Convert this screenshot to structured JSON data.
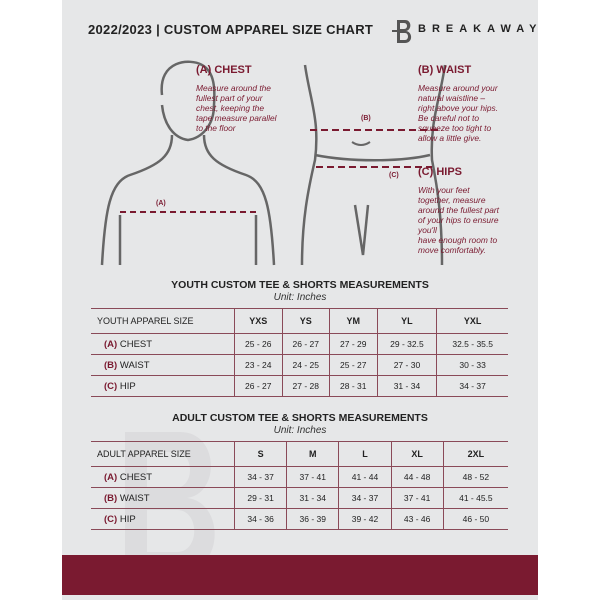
{
  "header": {
    "title": "2022/2023  |  CUSTOM APPAREL SIZE CHART",
    "brand": "BREAKAWAY",
    "logo_letter": "B"
  },
  "chest": {
    "heading": "(A) CHEST",
    "text": [
      "Measure around the",
      "fullest part of your",
      "chest, keeping the",
      "tape measure parallel",
      "to the floor"
    ],
    "marker": "(A)"
  },
  "waist": {
    "heading": "(B) WAIST",
    "text": [
      "Measure around your",
      "natural waistline –",
      "right above your hips.",
      "Be careful not to",
      "squeeze too tight to",
      "allow a little give."
    ],
    "marker": "(B)"
  },
  "hips": {
    "heading": "(C) HIPS",
    "text": [
      "With your feet",
      "together, measure",
      "around the fullest part",
      "of your hips to ensure",
      "you'll",
      "have enough room to",
      "move comfortably."
    ],
    "marker": "(C)"
  },
  "youth": {
    "title": "YOUTH CUSTOM TEE & SHORTS MEASUREMENTS",
    "unit": "Unit: Inches",
    "header": [
      "YOUTH APPAREL SIZE",
      "YXS",
      "YS",
      "YM",
      "YL",
      "YXL"
    ],
    "rows": [
      {
        "letter": "(A)",
        "name": "CHEST",
        "values": [
          "25 - 26",
          "26 - 27",
          "27 - 29",
          "29 - 32.5",
          "32.5 - 35.5"
        ]
      },
      {
        "letter": "(B)",
        "name": "WAIST",
        "values": [
          "23 - 24",
          "24 - 25",
          "25 - 27",
          "27 - 30",
          "30 - 33"
        ]
      },
      {
        "letter": "(C)",
        "name": "HIP",
        "values": [
          "26 - 27",
          "27 - 28",
          "28 - 31",
          "31 - 34",
          "34 - 37"
        ]
      }
    ]
  },
  "adult": {
    "title": "ADULT CUSTOM TEE & SHORTS MEASUREMENTS",
    "unit": "Unit: Inches",
    "header": [
      "ADULT APPAREL SIZE",
      "S",
      "M",
      "L",
      "XL",
      "2XL"
    ],
    "rows": [
      {
        "letter": "(A)",
        "name": "CHEST",
        "values": [
          "34 - 37",
          "37 - 41",
          "41 - 44",
          "44 - 48",
          "48 - 52"
        ]
      },
      {
        "letter": "(B)",
        "name": "WAIST",
        "values": [
          "29 - 31",
          "31 - 34",
          "34 - 37",
          "37 - 41",
          "41 - 45.5"
        ]
      },
      {
        "letter": "(C)",
        "name": "HIP",
        "values": [
          "34 - 36",
          "36 - 39",
          "39 - 42",
          "43 - 46",
          "46 - 50"
        ]
      }
    ]
  },
  "colors": {
    "accent": "#7a1a30",
    "panel": "#e6e7e8"
  }
}
